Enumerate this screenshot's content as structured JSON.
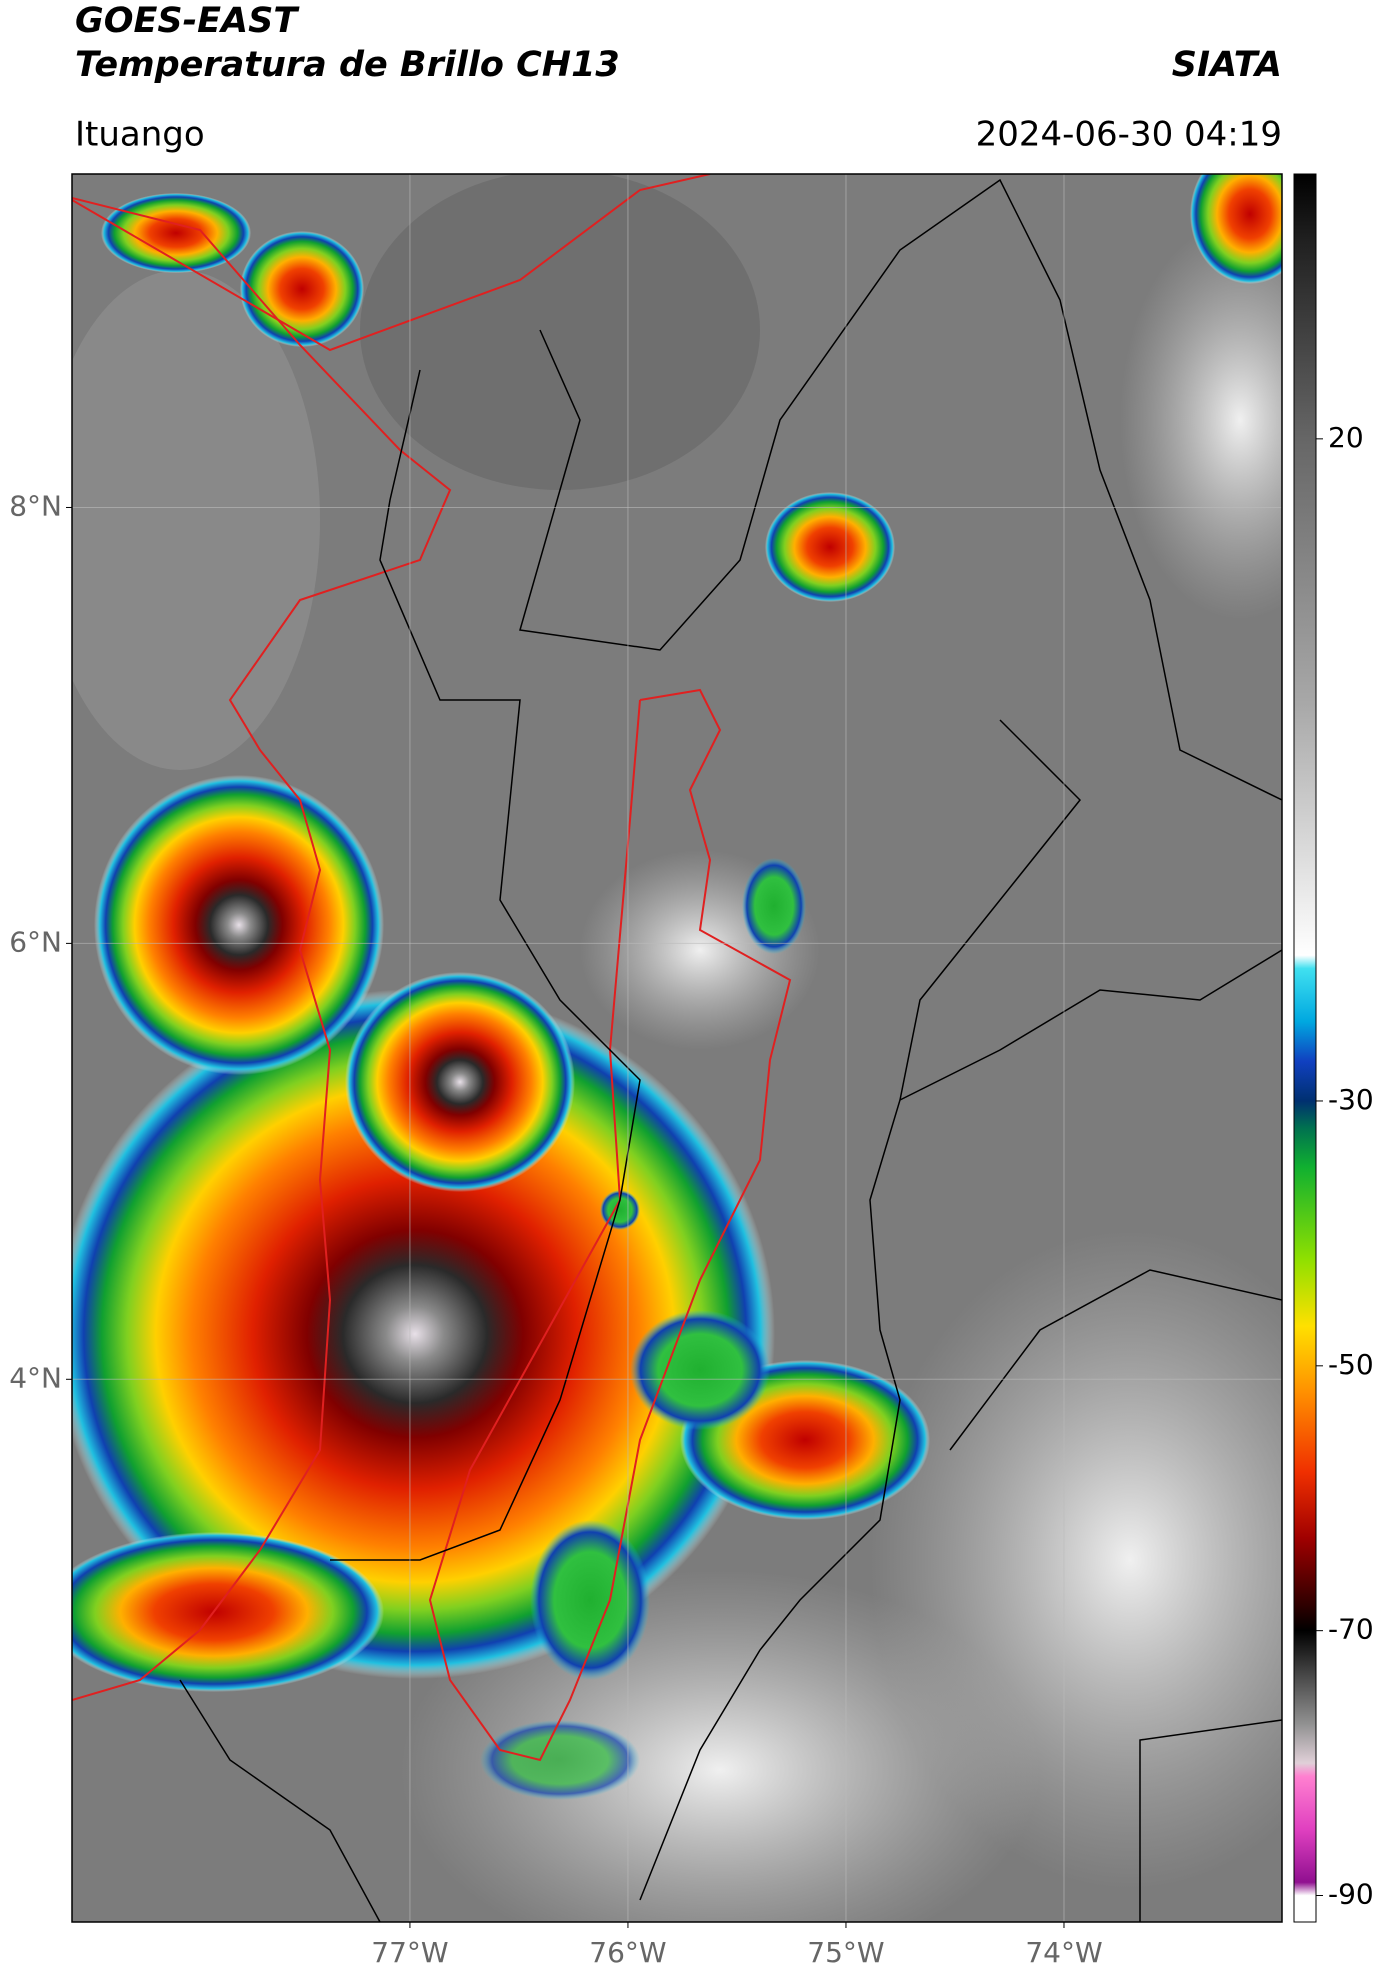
{
  "chart_data": {
    "type": "map",
    "title": "GOES-EAST",
    "subtitle": "Temperatura de Brillo CH13",
    "source": "SIATA",
    "location": "Ituango",
    "datetime": "2024-06-30 04:19",
    "xlim": [
      -78.55,
      -73.0
    ],
    "ylim": [
      1.51,
      9.53
    ],
    "xticks": [
      {
        "value": -77,
        "label": "77°W"
      },
      {
        "value": -76,
        "label": "76°W"
      },
      {
        "value": -75,
        "label": "75°W"
      },
      {
        "value": -74,
        "label": "74°W"
      }
    ],
    "yticks": [
      {
        "value": 8,
        "label": "8°N"
      },
      {
        "value": 6,
        "label": "6°N"
      },
      {
        "value": 4,
        "label": "4°N"
      }
    ],
    "grid": true,
    "clim": [
      40,
      -92
    ],
    "cticks": [
      20,
      -30,
      -50,
      -70,
      -90
    ],
    "colormap": [
      [
        40,
        "#000000"
      ],
      [
        35,
        "#202020"
      ],
      [
        20,
        "#666666"
      ],
      [
        0,
        "#a8a8a8"
      ],
      [
        -19,
        "#ffffff"
      ],
      [
        -20,
        "#40e0f0"
      ],
      [
        -24,
        "#00a8e0"
      ],
      [
        -27,
        "#1040c0"
      ],
      [
        -30,
        "#003070"
      ],
      [
        -32,
        "#007050"
      ],
      [
        -35,
        "#10b030"
      ],
      [
        -42,
        "#90e000"
      ],
      [
        -47,
        "#ffe000"
      ],
      [
        -52,
        "#ff9000"
      ],
      [
        -58,
        "#f03000"
      ],
      [
        -63,
        "#a00000"
      ],
      [
        -68,
        "#300000"
      ],
      [
        -70,
        "#000000"
      ],
      [
        -73,
        "#404040"
      ],
      [
        -77,
        "#909090"
      ],
      [
        -80,
        "#e0d0d8"
      ],
      [
        -81,
        "#ff80d0"
      ],
      [
        -85,
        "#e040c0"
      ],
      [
        -89,
        "#901090"
      ],
      [
        -90,
        "#ffffff"
      ],
      [
        -92,
        "#ffffff"
      ]
    ]
  }
}
